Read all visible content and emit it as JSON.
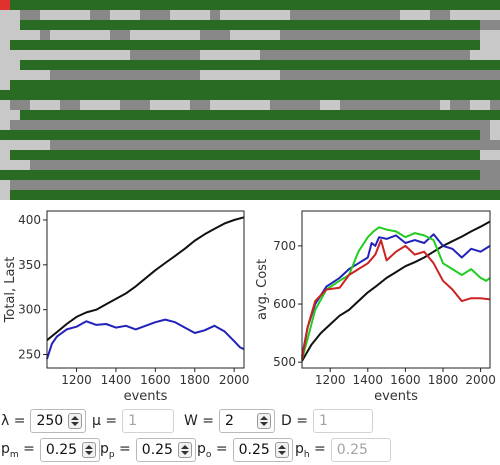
{
  "colors": {
    "grid_dark": "#2a6b24",
    "grid_mid": "#888888",
    "grid_light": "#c8c8c8",
    "grid_marker": "#e03030",
    "series_blue": "#2222bb",
    "series_black": "#111111",
    "series_green": "#22cc22",
    "series_red": "#cc2222"
  },
  "grid_pattern": [
    "gggggggggggggggggggggggggggggggggggggggggggggggggg",
    "llmmlllllmmlllmmmllllmlllllllmmmmmmmmmmmlllmmlllll",
    "llggggggggggggggggggggggggggggggggggggggggggggggmm",
    "llllmllllllmmlllllllmmmlllllmmmmmmmmmmmmmmmmmmmmll",
    "lgggggggggggggggggggggggggggggggggggggggggggggggll",
    "lllllllllllllmmmmmmmllllllmmmmmmmmmmmmmmmmmmmmmlll",
    "llgggggggggggggggggggggggggggggggggggggggggggggggg",
    "lllllmmmmmmmmmmmmmmmllllllllmmmmmmmmmmmmmmmmmmmmmm",
    "lggggggggggggggggggggggggggggggggggggggggggggggggg",
    "gggggggggggggggggggggggggggggggggggggggggggggggggg",
    "lmmlllmmllllmmmllllmmllllllmmmmmllmmmmmmmmmmlmmllm",
    "llgggggggggggggggggggggggggggggggggggggggggggggggg",
    "lmmmmmmmmmmmmmmmmmmmmmmmmmmmmmmmmmmmmmmmmmmmmmmmml",
    "ggggggggggggggggggggggggggggggggggggggggggggggggml",
    "lllllmmmmmmmmmmmmmmmmmmmmmmmmmmmmmmmmmmmmmmmmmmmmm",
    "lgggggggggggggggggggggggggggggggggggggggggggggggll",
    "lllmmmmmmmmmmmmmmmmmmmmmmmmmmmmmmmmmmmmmmmmmmmmmmm",
    "ggggggggggggggggggggggggggggggggggggggggggggggggmm",
    "lmmmmmmmmmmmmmmmmmmmmmmmmmmmmmmmmmmmmmmmmmmmmmmmmm",
    "lggggggggggggggggggggggggggggggggggggggggggggggggg"
  ],
  "chart_data": [
    {
      "type": "line",
      "title": "",
      "xlabel": "events",
      "ylabel": "Total, Last",
      "xlim": [
        1050,
        2050
      ],
      "ylim": [
        235,
        410
      ],
      "xticks": [
        1200,
        1400,
        1600,
        1800,
        2000
      ],
      "yticks": [
        250,
        300,
        350,
        400
      ],
      "series": [
        {
          "color_key": "series_black",
          "x": [
            1050,
            1100,
            1150,
            1200,
            1250,
            1300,
            1350,
            1400,
            1450,
            1500,
            1550,
            1600,
            1650,
            1700,
            1750,
            1800,
            1850,
            1900,
            1950,
            2000,
            2050
          ],
          "y": [
            266,
            275,
            284,
            292,
            297,
            300,
            306,
            312,
            318,
            326,
            335,
            344,
            352,
            360,
            368,
            377,
            384,
            390,
            396,
            400,
            403
          ]
        },
        {
          "color_key": "series_blue",
          "x": [
            1050,
            1075,
            1100,
            1150,
            1200,
            1250,
            1300,
            1350,
            1400,
            1450,
            1500,
            1550,
            1600,
            1650,
            1700,
            1750,
            1800,
            1850,
            1900,
            1950,
            2000,
            2030,
            2050
          ],
          "y": [
            245,
            262,
            270,
            278,
            281,
            287,
            283,
            284,
            280,
            282,
            278,
            282,
            286,
            289,
            286,
            280,
            274,
            277,
            282,
            276,
            265,
            258,
            256
          ]
        }
      ]
    },
    {
      "type": "line",
      "title": "",
      "xlabel": "events",
      "ylabel": "avg. Cost",
      "xlim": [
        1050,
        2050
      ],
      "ylim": [
        490,
        760
      ],
      "xticks": [
        1200,
        1400,
        1600,
        1800,
        2000
      ],
      "yticks": [
        500,
        600,
        700
      ],
      "series": [
        {
          "color_key": "series_black",
          "x": [
            1050,
            1100,
            1150,
            1200,
            1250,
            1300,
            1350,
            1400,
            1450,
            1500,
            1550,
            1600,
            1650,
            1700,
            1750,
            1800,
            1850,
            1900,
            1950,
            2000,
            2050
          ],
          "y": [
            502,
            530,
            550,
            565,
            580,
            590,
            605,
            620,
            632,
            645,
            655,
            665,
            672,
            680,
            690,
            700,
            708,
            716,
            725,
            733,
            742
          ]
        },
        {
          "color_key": "series_blue",
          "x": [
            1050,
            1080,
            1120,
            1180,
            1250,
            1300,
            1350,
            1400,
            1420,
            1440,
            1460,
            1500,
            1550,
            1600,
            1650,
            1700,
            1750,
            1800,
            1850,
            1900,
            1950,
            2000,
            2050
          ],
          "y": [
            510,
            560,
            600,
            630,
            645,
            660,
            670,
            680,
            705,
            700,
            715,
            712,
            718,
            705,
            710,
            705,
            720,
            700,
            695,
            680,
            695,
            690,
            700
          ]
        },
        {
          "color_key": "series_green",
          "x": [
            1050,
            1080,
            1120,
            1180,
            1250,
            1300,
            1350,
            1400,
            1430,
            1460,
            1500,
            1550,
            1600,
            1650,
            1700,
            1750,
            1800,
            1850,
            1900,
            1950,
            2000,
            2030,
            2050
          ],
          "y": [
            505,
            540,
            590,
            625,
            640,
            650,
            690,
            715,
            725,
            732,
            728,
            725,
            715,
            722,
            718,
            710,
            670,
            660,
            650,
            660,
            645,
            640,
            645
          ]
        },
        {
          "color_key": "series_red",
          "x": [
            1050,
            1080,
            1120,
            1180,
            1250,
            1300,
            1350,
            1400,
            1440,
            1470,
            1500,
            1550,
            1600,
            1650,
            1700,
            1750,
            1800,
            1850,
            1900,
            1950,
            2000,
            2050
          ],
          "y": [
            505,
            560,
            605,
            625,
            628,
            650,
            660,
            670,
            685,
            710,
            675,
            690,
            700,
            685,
            690,
            670,
            640,
            625,
            605,
            610,
            610,
            608
          ]
        }
      ]
    }
  ],
  "controls": {
    "row1": [
      {
        "name": "lambda-spinner",
        "label": "λ",
        "value": "250",
        "disabled": false
      },
      {
        "name": "mu-spinner",
        "label": "μ",
        "value": "1",
        "disabled": true
      },
      {
        "name": "w-spinner",
        "label": "W",
        "value": "2",
        "disabled": false
      },
      {
        "name": "d-spinner",
        "label": "D",
        "value": "1",
        "disabled": true
      }
    ],
    "row2": [
      {
        "name": "pm-spinner",
        "label": "p",
        "sub": "m",
        "value": "0.25",
        "disabled": false
      },
      {
        "name": "pp-spinner",
        "label": "p",
        "sub": "p",
        "value": "0.25",
        "disabled": false
      },
      {
        "name": "po-spinner",
        "label": "p",
        "sub": "o",
        "value": "0.25",
        "disabled": false
      },
      {
        "name": "ph-spinner",
        "label": "p",
        "sub": "h",
        "value": "0.25",
        "disabled": true
      }
    ]
  }
}
